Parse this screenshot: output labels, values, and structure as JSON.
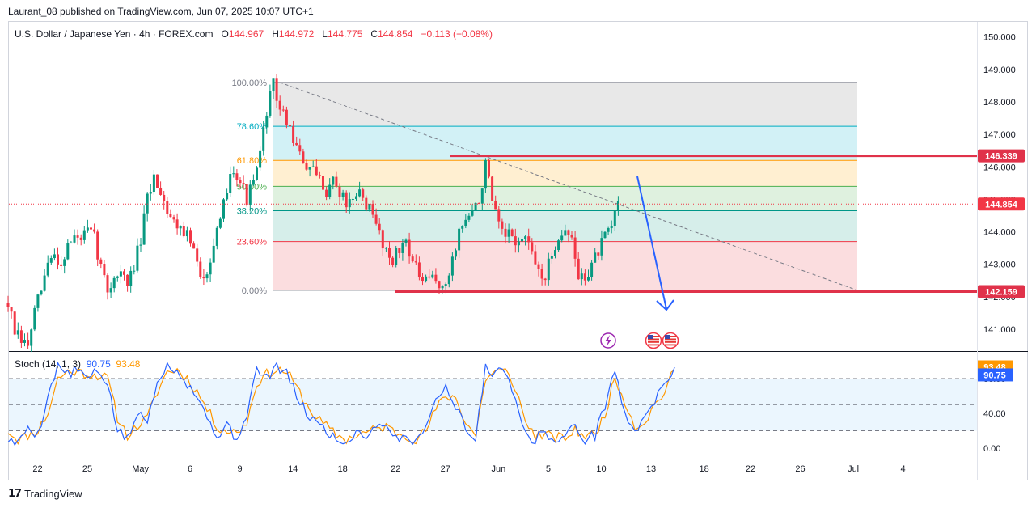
{
  "header": {
    "published": "Laurant_08 published on TradingView.com, Jun 07, 2025 10:07 UTC+1"
  },
  "legend": {
    "symbol": "U.S. Dollar / Japanese Yen · 4h · FOREX.com",
    "open_label": "O",
    "open": "144.967",
    "high_label": "H",
    "high": "144.972",
    "low_label": "L",
    "low": "144.775",
    "close_label": "C",
    "close": "144.854",
    "change": "−0.113 (−0.08%)"
  },
  "colors": {
    "up": "#089981",
    "down": "#f23645",
    "line_red": "#e0324a",
    "arrow": "#2962ff",
    "k": "#2962ff",
    "d": "#ff9800"
  },
  "chart_data": [
    {
      "type": "candlestick",
      "title": "U.S. Dollar / Japanese Yen · 4h · FOREX.com",
      "y_axis_ticks": [
        "141.000",
        "142.000",
        "143.000",
        "144.000",
        "145.000",
        "146.000",
        "147.000",
        "148.000",
        "149.000",
        "150.000"
      ],
      "ylim": [
        140.35,
        150.4
      ],
      "x_axis_ticks": [
        {
          "label": "22",
          "i": 5
        },
        {
          "label": "25",
          "i": 20
        },
        {
          "label": "May",
          "i": 36
        },
        {
          "label": "6",
          "i": 51
        },
        {
          "label": "9",
          "i": 66
        },
        {
          "label": "14",
          "i": 82
        },
        {
          "label": "18",
          "i": 97
        },
        {
          "label": "22",
          "i": 113
        },
        {
          "label": "27",
          "i": 128
        },
        {
          "label": "Jun",
          "i": 144
        },
        {
          "label": "5",
          "i": 159
        },
        {
          "label": "10",
          "i": 175
        },
        {
          "label": "13",
          "i": 190
        },
        {
          "label": "18",
          "i": 206
        },
        {
          "label": "22",
          "i": 220
        },
        {
          "label": "26",
          "i": 235
        },
        {
          "label": "Jul",
          "i": 251
        },
        {
          "label": "4",
          "i": 266
        }
      ],
      "price_path": [
        [
          0,
          141.8
        ],
        [
          2,
          140.9
        ],
        [
          4,
          140.6
        ],
        [
          6,
          140.5
        ],
        [
          8,
          141.5
        ],
        [
          10,
          142.2
        ],
        [
          12,
          143.0
        ],
        [
          14,
          143.3
        ],
        [
          16,
          143.0
        ],
        [
          18,
          143.6
        ],
        [
          20,
          143.8
        ],
        [
          22,
          143.8
        ],
        [
          24,
          144.0
        ],
        [
          26,
          143.8
        ],
        [
          28,
          142.9
        ],
        [
          30,
          142.2
        ],
        [
          32,
          142.6
        ],
        [
          34,
          142.8
        ],
        [
          36,
          142.3
        ],
        [
          38,
          143.0
        ],
        [
          40,
          143.7
        ],
        [
          42,
          145.0
        ],
        [
          44,
          145.7
        ],
        [
          46,
          145.3
        ],
        [
          48,
          144.7
        ],
        [
          50,
          144.3
        ],
        [
          52,
          144.2
        ],
        [
          54,
          143.9
        ],
        [
          56,
          143.4
        ],
        [
          58,
          142.5
        ],
        [
          60,
          142.9
        ],
        [
          62,
          143.6
        ],
        [
          64,
          144.2
        ],
        [
          66,
          145.4
        ],
        [
          68,
          146.0
        ],
        [
          70,
          145.6
        ],
        [
          72,
          145.0
        ],
        [
          74,
          145.5
        ],
        [
          76,
          146.3
        ],
        [
          78,
          147.8
        ],
        [
          80,
          148.5
        ],
        [
          82,
          147.8
        ],
        [
          84,
          147.4
        ],
        [
          86,
          146.9
        ],
        [
          88,
          146.3
        ],
        [
          90,
          146.0
        ],
        [
          92,
          145.8
        ],
        [
          94,
          145.6
        ],
        [
          96,
          145.3
        ],
        [
          98,
          145.6
        ],
        [
          100,
          145.2
        ],
        [
          102,
          144.9
        ],
        [
          104,
          144.8
        ],
        [
          106,
          145.2
        ],
        [
          108,
          144.9
        ],
        [
          110,
          144.4
        ],
        [
          112,
          144.0
        ],
        [
          114,
          143.4
        ],
        [
          116,
          143.2
        ],
        [
          118,
          143.4
        ],
        [
          120,
          143.8
        ],
        [
          122,
          143.1
        ],
        [
          124,
          142.6
        ],
        [
          126,
          142.4
        ],
        [
          128,
          142.6
        ],
        [
          130,
          142.4
        ],
        [
          132,
          142.2
        ],
        [
          134,
          143.2
        ],
        [
          136,
          144.0
        ],
        [
          138,
          144.4
        ],
        [
          140,
          144.6
        ],
        [
          142,
          144.9
        ],
        [
          144,
          146.1
        ],
        [
          146,
          144.9
        ],
        [
          148,
          144.1
        ],
        [
          150,
          143.8
        ],
        [
          152,
          143.9
        ],
        [
          154,
          143.6
        ],
        [
          156,
          143.9
        ],
        [
          158,
          143.2
        ],
        [
          160,
          142.8
        ],
        [
          162,
          142.6
        ],
        [
          164,
          143.3
        ],
        [
          166,
          143.9
        ],
        [
          168,
          144.1
        ],
        [
          170,
          143.7
        ],
        [
          172,
          142.6
        ],
        [
          174,
          142.6
        ],
        [
          176,
          143.0
        ],
        [
          178,
          143.4
        ],
        [
          180,
          143.8
        ],
        [
          182,
          144.1
        ],
        [
          184,
          145.0
        ]
      ],
      "stochastic": {
        "label": "Stoch (14, 1, 3)",
        "k": "90.75",
        "d": "93.48",
        "ticks": [
          "0.00",
          "40.00",
          "80.00"
        ],
        "ylim": [
          0,
          100
        ],
        "bands": [
          20,
          50,
          80
        ],
        "k_path": [
          [
            0,
            10
          ],
          [
            3,
            5
          ],
          [
            6,
            25
          ],
          [
            9,
            15
          ],
          [
            12,
            60
          ],
          [
            15,
            95
          ],
          [
            18,
            85
          ],
          [
            21,
            90
          ],
          [
            24,
            80
          ],
          [
            27,
            88
          ],
          [
            30,
            75
          ],
          [
            33,
            20
          ],
          [
            36,
            10
          ],
          [
            39,
            40
          ],
          [
            42,
            30
          ],
          [
            45,
            80
          ],
          [
            48,
            95
          ],
          [
            51,
            90
          ],
          [
            54,
            75
          ],
          [
            57,
            60
          ],
          [
            60,
            35
          ],
          [
            63,
            15
          ],
          [
            66,
            25
          ],
          [
            69,
            10
          ],
          [
            72,
            40
          ],
          [
            75,
            90
          ],
          [
            78,
            80
          ],
          [
            81,
            95
          ],
          [
            84,
            85
          ],
          [
            87,
            60
          ],
          [
            90,
            40
          ],
          [
            93,
            30
          ],
          [
            96,
            20
          ],
          [
            99,
            10
          ],
          [
            102,
            5
          ],
          [
            105,
            20
          ],
          [
            108,
            15
          ],
          [
            111,
            25
          ],
          [
            114,
            30
          ],
          [
            117,
            10
          ],
          [
            120,
            15
          ],
          [
            123,
            5
          ],
          [
            126,
            30
          ],
          [
            129,
            55
          ],
          [
            132,
            70
          ],
          [
            135,
            50
          ],
          [
            138,
            20
          ],
          [
            141,
            10
          ],
          [
            144,
            95
          ],
          [
            147,
            85
          ],
          [
            150,
            90
          ],
          [
            153,
            60
          ],
          [
            156,
            15
          ],
          [
            159,
            10
          ],
          [
            162,
            20
          ],
          [
            165,
            5
          ],
          [
            168,
            15
          ],
          [
            171,
            25
          ],
          [
            174,
            10
          ],
          [
            177,
            15
          ],
          [
            180,
            50
          ],
          [
            183,
            90
          ],
          [
            186,
            40
          ],
          [
            189,
            15
          ],
          [
            192,
            40
          ],
          [
            195,
            55
          ],
          [
            198,
            70
          ],
          [
            201,
            93
          ]
        ],
        "d_path": [
          [
            0,
            20
          ],
          [
            3,
            10
          ],
          [
            6,
            15
          ],
          [
            9,
            20
          ],
          [
            12,
            40
          ],
          [
            15,
            80
          ],
          [
            18,
            88
          ],
          [
            21,
            88
          ],
          [
            24,
            85
          ],
          [
            27,
            84
          ],
          [
            30,
            80
          ],
          [
            33,
            35
          ],
          [
            36,
            15
          ],
          [
            39,
            25
          ],
          [
            42,
            35
          ],
          [
            45,
            65
          ],
          [
            48,
            88
          ],
          [
            51,
            90
          ],
          [
            54,
            80
          ],
          [
            57,
            65
          ],
          [
            60,
            45
          ],
          [
            63,
            25
          ],
          [
            66,
            20
          ],
          [
            69,
            18
          ],
          [
            72,
            30
          ],
          [
            75,
            75
          ],
          [
            78,
            85
          ],
          [
            81,
            90
          ],
          [
            84,
            88
          ],
          [
            87,
            70
          ],
          [
            90,
            50
          ],
          [
            93,
            35
          ],
          [
            96,
            25
          ],
          [
            99,
            15
          ],
          [
            102,
            10
          ],
          [
            105,
            15
          ],
          [
            108,
            18
          ],
          [
            111,
            22
          ],
          [
            114,
            25
          ],
          [
            117,
            18
          ],
          [
            120,
            15
          ],
          [
            123,
            10
          ],
          [
            126,
            20
          ],
          [
            129,
            45
          ],
          [
            132,
            60
          ],
          [
            135,
            58
          ],
          [
            138,
            30
          ],
          [
            141,
            15
          ],
          [
            144,
            80
          ],
          [
            147,
            88
          ],
          [
            150,
            88
          ],
          [
            153,
            70
          ],
          [
            156,
            30
          ],
          [
            159,
            15
          ],
          [
            162,
            15
          ],
          [
            165,
            12
          ],
          [
            168,
            12
          ],
          [
            171,
            20
          ],
          [
            174,
            15
          ],
          [
            177,
            15
          ],
          [
            180,
            40
          ],
          [
            183,
            80
          ],
          [
            186,
            55
          ],
          [
            189,
            25
          ],
          [
            192,
            30
          ],
          [
            195,
            50
          ],
          [
            198,
            65
          ],
          [
            201,
            90
          ]
        ]
      },
      "fibonacci": [
        {
          "level": "100.00%",
          "price": 148.6,
          "color": "#787b86",
          "fill": "#e6e6e6"
        },
        {
          "level": "78.60%",
          "price": 147.25,
          "color": "#00acc1",
          "fill": "#cdf0f5"
        },
        {
          "level": "61.80%",
          "price": 146.2,
          "color": "#ff9800",
          "fill": "#ffedcc"
        },
        {
          "level": "50.00%",
          "price": 145.4,
          "color": "#4caf50",
          "fill": "#dcefdc"
        },
        {
          "level": "38.20%",
          "price": 144.65,
          "color": "#009688",
          "fill": "#d2ece8"
        },
        {
          "level": "23.60%",
          "price": 143.7,
          "color": "#f23645",
          "fill": "#fbd9dc"
        },
        {
          "level": "0.00%",
          "price": 142.2,
          "color": "#787b86",
          "fill": null
        }
      ],
      "horizontal_lines": [
        {
          "label": "146.339",
          "price": 146.339
        },
        {
          "label": "142.159",
          "price": 142.159
        }
      ],
      "current_price": {
        "label": "144.854",
        "price": 144.854
      }
    }
  ],
  "footer": {
    "brand": "TradingView"
  }
}
